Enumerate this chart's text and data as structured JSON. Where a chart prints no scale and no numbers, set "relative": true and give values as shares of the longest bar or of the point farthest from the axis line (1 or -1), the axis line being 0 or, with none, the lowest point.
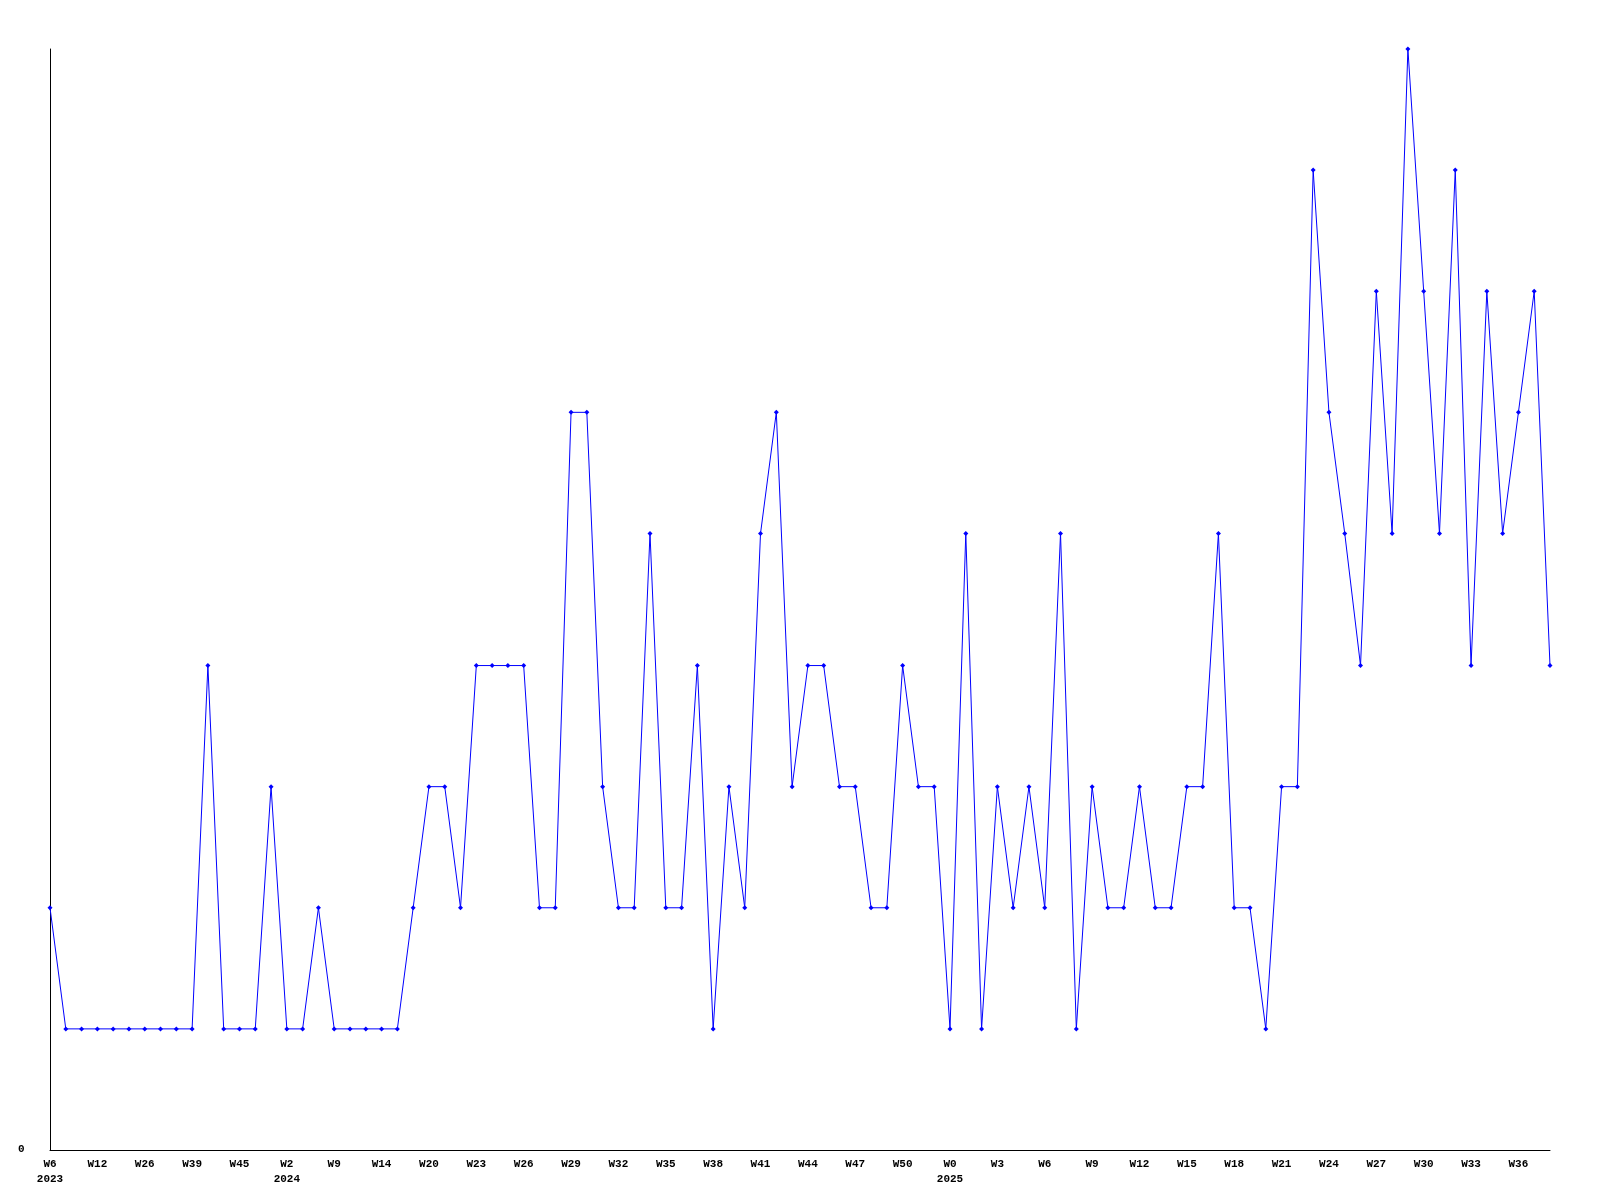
{
  "chart_data": {
    "type": "line",
    "relative": true,
    "marker": "diamond",
    "line_style": "solid",
    "annotations": [
      "0"
    ],
    "categories": [
      "W6\n2023",
      null,
      null,
      "W12",
      null,
      null,
      "W26",
      null,
      null,
      "W39",
      null,
      null,
      "W45",
      null,
      null,
      "W2\n2024",
      null,
      null,
      "W9",
      null,
      null,
      "W14",
      null,
      null,
      "W20",
      null,
      null,
      "W23",
      null,
      null,
      "W26",
      null,
      null,
      "W29",
      null,
      null,
      "W32",
      null,
      null,
      "W35",
      null,
      null,
      "W38",
      null,
      null,
      "W41",
      null,
      null,
      "W44",
      null,
      null,
      "W47",
      null,
      null,
      "W50",
      null,
      null,
      "W0\n2025",
      null,
      null,
      "W3",
      null,
      null,
      "W6",
      null,
      null,
      "W9",
      null,
      null,
      "W12",
      null,
      null,
      "W15",
      null,
      null,
      "W18",
      null,
      null,
      "W21",
      null,
      null,
      "W24",
      null,
      null,
      "W27",
      null,
      null,
      "W30",
      null,
      null,
      "W33",
      null,
      null,
      "W36",
      null,
      null
    ],
    "series": [
      {
        "color": "#0000ff",
        "values": [
          0.22,
          0.11,
          0.11,
          0.11,
          0.11,
          0.11,
          0.11,
          0.11,
          0.11,
          0.11,
          0.44,
          0.11,
          0.11,
          0.11,
          0.33,
          0.11,
          0.11,
          0.22,
          0.11,
          0.11,
          0.11,
          0.11,
          0.11,
          0.22,
          0.33,
          0.33,
          0.22,
          0.44,
          0.44,
          0.44,
          0.44,
          0.22,
          0.22,
          0.67,
          0.67,
          0.33,
          0.22,
          0.22,
          0.56,
          0.22,
          0.22,
          0.44,
          0.11,
          0.33,
          0.22,
          0.56,
          0.67,
          0.33,
          0.44,
          0.44,
          0.33,
          0.33,
          0.22,
          0.22,
          0.44,
          0.33,
          0.33,
          0.11,
          0.56,
          0.11,
          0.33,
          0.22,
          0.33,
          0.22,
          0.56,
          0.11,
          0.33,
          0.22,
          0.22,
          0.33,
          0.22,
          0.22,
          0.33,
          0.33,
          0.56,
          0.22,
          0.22,
          0.11,
          0.33,
          0.33,
          0.89,
          0.67,
          0.56,
          0.44,
          0.78,
          0.56,
          1,
          0.78,
          0.56,
          0.89,
          0.44,
          0.78,
          0.56,
          0.67,
          0.78,
          0.44
        ]
      }
    ]
  }
}
